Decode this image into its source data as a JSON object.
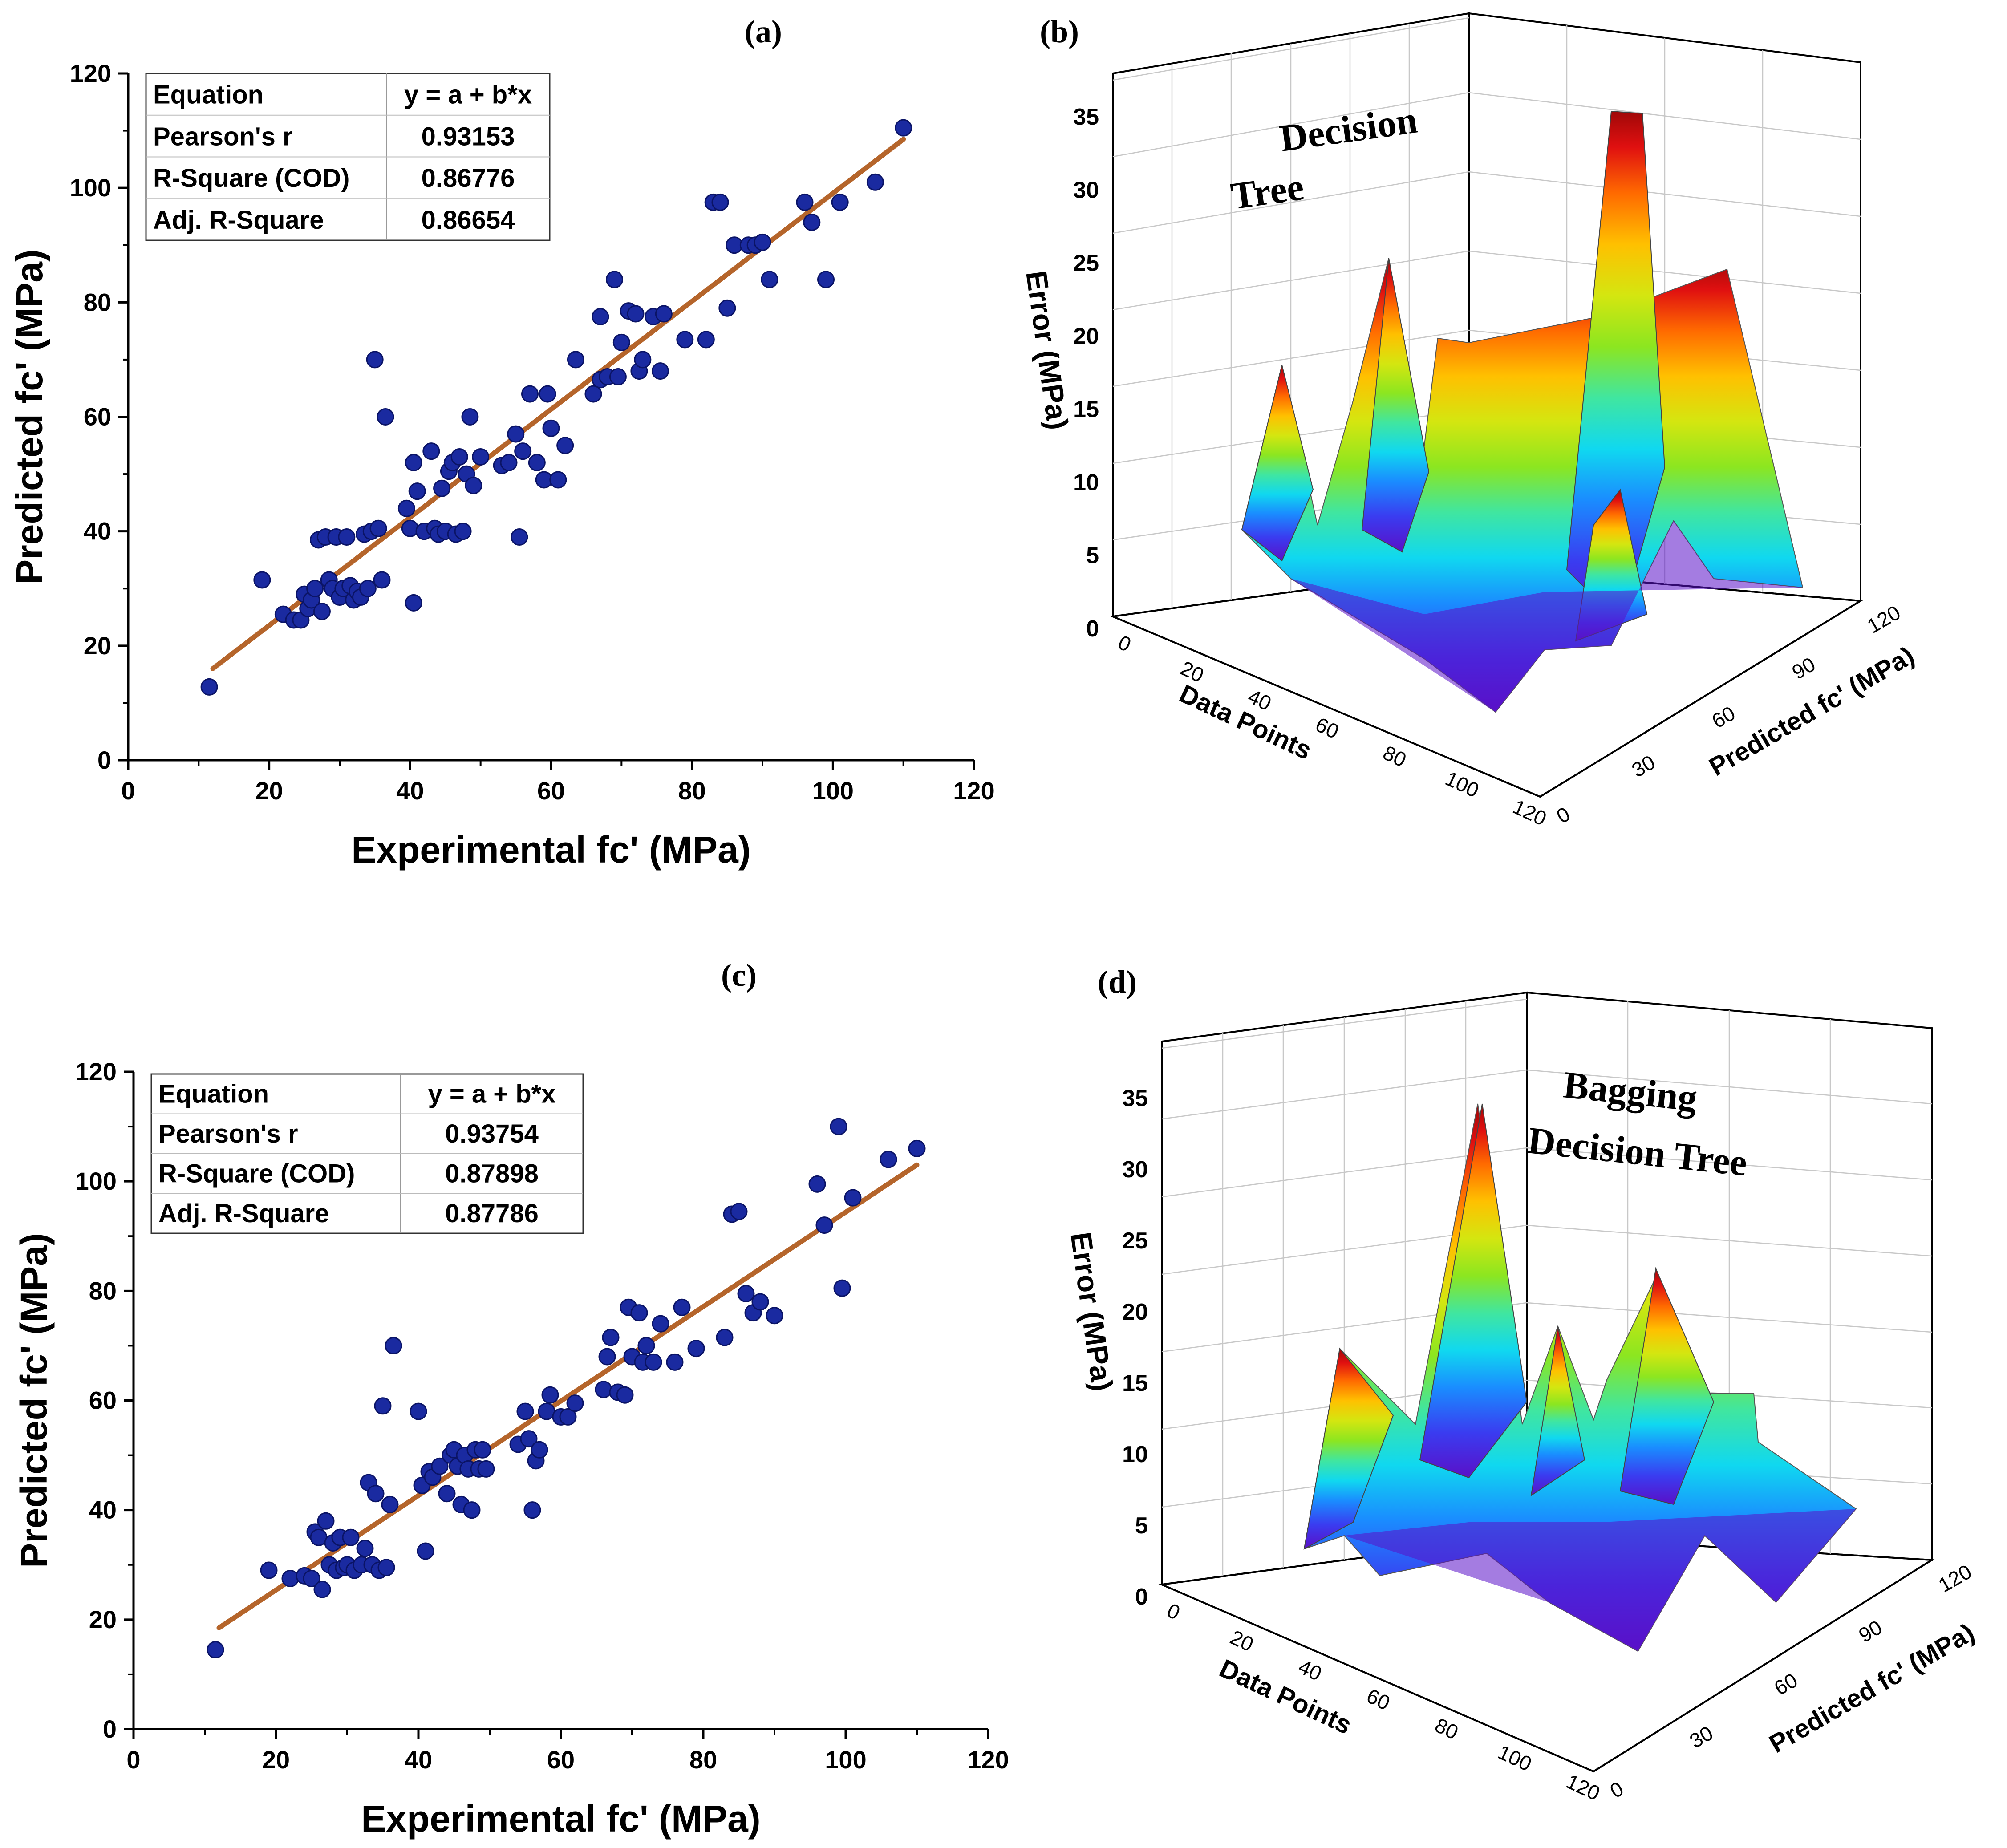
{
  "colors": {
    "point_fill": "#1a2aa0",
    "point_stroke": "#0b1466",
    "fit_line": "#b5652b",
    "axis": "#000000",
    "grid3d": "#c8c8c8",
    "surface_ramp": [
      "#5a10c8",
      "#3a3cf0",
      "#1a8cff",
      "#10d8f0",
      "#40e6a0",
      "#8ce620",
      "#d4e610",
      "#ffc000",
      "#ff6a00",
      "#e01010",
      "#a00808"
    ]
  },
  "chart_data": [
    {
      "panel_label": "(a)",
      "type": "scatter",
      "xlabel": "Experimental fc' (MPa)",
      "ylabel": "Predicted fc' (MPa)",
      "xlim": [
        0,
        120
      ],
      "ylim": [
        0,
        120
      ],
      "xticks": [
        "0",
        "20",
        "40",
        "60",
        "80",
        "100",
        "120"
      ],
      "yticks": [
        "0",
        "20",
        "40",
        "60",
        "80",
        "100",
        "120"
      ],
      "stats": {
        "header": [
          "Equation",
          "y = a + b*x"
        ],
        "rows": [
          [
            "Pearson's r",
            "0.93153"
          ],
          [
            "R-Square (COD)",
            "0.86776"
          ],
          [
            "Adj. R-Square",
            "0.86654"
          ]
        ]
      },
      "fit": {
        "x": [
          12,
          110
        ],
        "y": [
          16,
          108.5
        ]
      },
      "points": [
        [
          11.5,
          12.8
        ],
        [
          19,
          31.5
        ],
        [
          22,
          25.5
        ],
        [
          23.5,
          24.5
        ],
        [
          24.5,
          24.5
        ],
        [
          25,
          29
        ],
        [
          25.5,
          26.5
        ],
        [
          26,
          28
        ],
        [
          26.5,
          30
        ],
        [
          27,
          38.5
        ],
        [
          27.5,
          26
        ],
        [
          28,
          39
        ],
        [
          28.5,
          31.5
        ],
        [
          29,
          30
        ],
        [
          29.5,
          39
        ],
        [
          30,
          28.5
        ],
        [
          30.5,
          30
        ],
        [
          31,
          39
        ],
        [
          31.5,
          30.5
        ],
        [
          32,
          28
        ],
        [
          32.5,
          29.5
        ],
        [
          33,
          28.5
        ],
        [
          33.5,
          39.5
        ],
        [
          34,
          30
        ],
        [
          34.5,
          40
        ],
        [
          35,
          70
        ],
        [
          35.5,
          40.5
        ],
        [
          36,
          31.5
        ],
        [
          36.5,
          60
        ],
        [
          39.5,
          44
        ],
        [
          40,
          40.5
        ],
        [
          40.5,
          52
        ],
        [
          40.5,
          27.5
        ],
        [
          41,
          47
        ],
        [
          42,
          40
        ],
        [
          43,
          54
        ],
        [
          43.5,
          40.5
        ],
        [
          44,
          39.5
        ],
        [
          44.5,
          47.5
        ],
        [
          45,
          40
        ],
        [
          45.5,
          50.5
        ],
        [
          46,
          52
        ],
        [
          46.5,
          39.5
        ],
        [
          47,
          53
        ],
        [
          47.5,
          40
        ],
        [
          48,
          50
        ],
        [
          48.5,
          60
        ],
        [
          49,
          48
        ],
        [
          50,
          53
        ],
        [
          53,
          51.5
        ],
        [
          54,
          52
        ],
        [
          55,
          57
        ],
        [
          55.5,
          39
        ],
        [
          56,
          54
        ],
        [
          57,
          64
        ],
        [
          58,
          52
        ],
        [
          59,
          49
        ],
        [
          59.5,
          64
        ],
        [
          60,
          58
        ],
        [
          61,
          49
        ],
        [
          62,
          55
        ],
        [
          63.5,
          70
        ],
        [
          66,
          64
        ],
        [
          67,
          66.5
        ],
        [
          67,
          77.5
        ],
        [
          68,
          67
        ],
        [
          69,
          84
        ],
        [
          69.5,
          67
        ],
        [
          70,
          73
        ],
        [
          71,
          78.5
        ],
        [
          72,
          78
        ],
        [
          72.5,
          68
        ],
        [
          73,
          70
        ],
        [
          74.5,
          77.5
        ],
        [
          75.5,
          68
        ],
        [
          76,
          78
        ],
        [
          79,
          73.5
        ],
        [
          82,
          73.5
        ],
        [
          83,
          97.5
        ],
        [
          84,
          97.5
        ],
        [
          85,
          79
        ],
        [
          86,
          90
        ],
        [
          88,
          90
        ],
        [
          89,
          90
        ],
        [
          90,
          90.5
        ],
        [
          91,
          84
        ],
        [
          96,
          97.5
        ],
        [
          97,
          94
        ],
        [
          99,
          84
        ],
        [
          101,
          97.5
        ],
        [
          106,
          101
        ],
        [
          110,
          110.5
        ]
      ]
    },
    {
      "panel_label": "(b)",
      "type": "surface3d",
      "title": "Decision Tree",
      "title_lines": [
        "Decision",
        "Tree"
      ],
      "zlabel": "Error (MPa)",
      "xlabel": "Data Points",
      "ylabel": "Predicted fc' (MPa)",
      "zticks": [
        "0",
        "5",
        "10",
        "15",
        "20",
        "25",
        "30",
        "35"
      ],
      "xticks": [
        "0",
        "20",
        "40",
        "60",
        "80",
        "100",
        "120"
      ],
      "yticks": [
        "0",
        "30",
        "60",
        "90",
        "120"
      ],
      "peak_error": 35
    },
    {
      "panel_label": "(c)",
      "type": "scatter",
      "xlabel": "Experimental fc' (MPa)",
      "ylabel": "Predicted fc' (MPa)",
      "xlim": [
        0,
        120
      ],
      "ylim": [
        0,
        120
      ],
      "xticks": [
        "0",
        "20",
        "40",
        "60",
        "80",
        "100",
        "120"
      ],
      "yticks": [
        "0",
        "20",
        "40",
        "60",
        "80",
        "100",
        "120"
      ],
      "stats": {
        "header": [
          "Equation",
          "y = a + b*x"
        ],
        "rows": [
          [
            "Pearson's r",
            "0.93754"
          ],
          [
            "R-Square (COD)",
            "0.87898"
          ],
          [
            "Adj. R-Square",
            "0.87786"
          ]
        ]
      },
      "fit": {
        "x": [
          12,
          110
        ],
        "y": [
          18.5,
          103
        ]
      },
      "points": [
        [
          11.5,
          14.5
        ],
        [
          19,
          29
        ],
        [
          22,
          27.5
        ],
        [
          24,
          28
        ],
        [
          25,
          27.5
        ],
        [
          25.5,
          36
        ],
        [
          26,
          35
        ],
        [
          26.5,
          25.5
        ],
        [
          27,
          38
        ],
        [
          27.5,
          30
        ],
        [
          28,
          34
        ],
        [
          28.5,
          29
        ],
        [
          29,
          35
        ],
        [
          29.5,
          29.5
        ],
        [
          30,
          30
        ],
        [
          30.5,
          35
        ],
        [
          31,
          29
        ],
        [
          32,
          30
        ],
        [
          32.5,
          33
        ],
        [
          33,
          45
        ],
        [
          33.5,
          30
        ],
        [
          34,
          43
        ],
        [
          34.5,
          29
        ],
        [
          35,
          59
        ],
        [
          35.5,
          29.5
        ],
        [
          36,
          41
        ],
        [
          36.5,
          70
        ],
        [
          40,
          58
        ],
        [
          40.5,
          44.5
        ],
        [
          41,
          32.5
        ],
        [
          41.5,
          47
        ],
        [
          42,
          46
        ],
        [
          43,
          48
        ],
        [
          44,
          43
        ],
        [
          44.5,
          50
        ],
        [
          45,
          51
        ],
        [
          45.5,
          48
        ],
        [
          46,
          41
        ],
        [
          46.5,
          50
        ],
        [
          47,
          47.5
        ],
        [
          47.5,
          40
        ],
        [
          48,
          51
        ],
        [
          48.5,
          47.5
        ],
        [
          49,
          51
        ],
        [
          49.5,
          47.5
        ],
        [
          54,
          52
        ],
        [
          55,
          58
        ],
        [
          55.5,
          53
        ],
        [
          56,
          40
        ],
        [
          56.5,
          49
        ],
        [
          57,
          51
        ],
        [
          58,
          58
        ],
        [
          58.5,
          61
        ],
        [
          60,
          57
        ],
        [
          61,
          57
        ],
        [
          62,
          59.5
        ],
        [
          66,
          62
        ],
        [
          66.5,
          68
        ],
        [
          67,
          71.5
        ],
        [
          68,
          61.5
        ],
        [
          69,
          61
        ],
        [
          69.5,
          77
        ],
        [
          70,
          68
        ],
        [
          71,
          76
        ],
        [
          71.5,
          67
        ],
        [
          72,
          70
        ],
        [
          73,
          67
        ],
        [
          74,
          74
        ],
        [
          76,
          67
        ],
        [
          77,
          77
        ],
        [
          79,
          69.5
        ],
        [
          83,
          71.5
        ],
        [
          84,
          94
        ],
        [
          85,
          94.5
        ],
        [
          86,
          79.5
        ],
        [
          87,
          76
        ],
        [
          88,
          78
        ],
        [
          90,
          75.5
        ],
        [
          96,
          99.5
        ],
        [
          97,
          92
        ],
        [
          99,
          110
        ],
        [
          99.5,
          80.5
        ],
        [
          101,
          97
        ],
        [
          106,
          104
        ],
        [
          110,
          106
        ]
      ]
    },
    {
      "panel_label": "(d)",
      "type": "surface3d",
      "title": "Bagging Decision Tree",
      "title_lines": [
        "Bagging",
        "Decision Tree"
      ],
      "zlabel": "Error (MPa)",
      "xlabel": "Data Points",
      "ylabel": "Predicted fc' (MPa)",
      "zticks": [
        "0",
        "5",
        "10",
        "15",
        "20",
        "25",
        "30",
        "35"
      ],
      "xticks": [
        "0",
        "20",
        "40",
        "60",
        "80",
        "100",
        "120"
      ],
      "yticks": [
        "0",
        "30",
        "60",
        "90",
        "120"
      ],
      "peak_error": 35
    }
  ]
}
